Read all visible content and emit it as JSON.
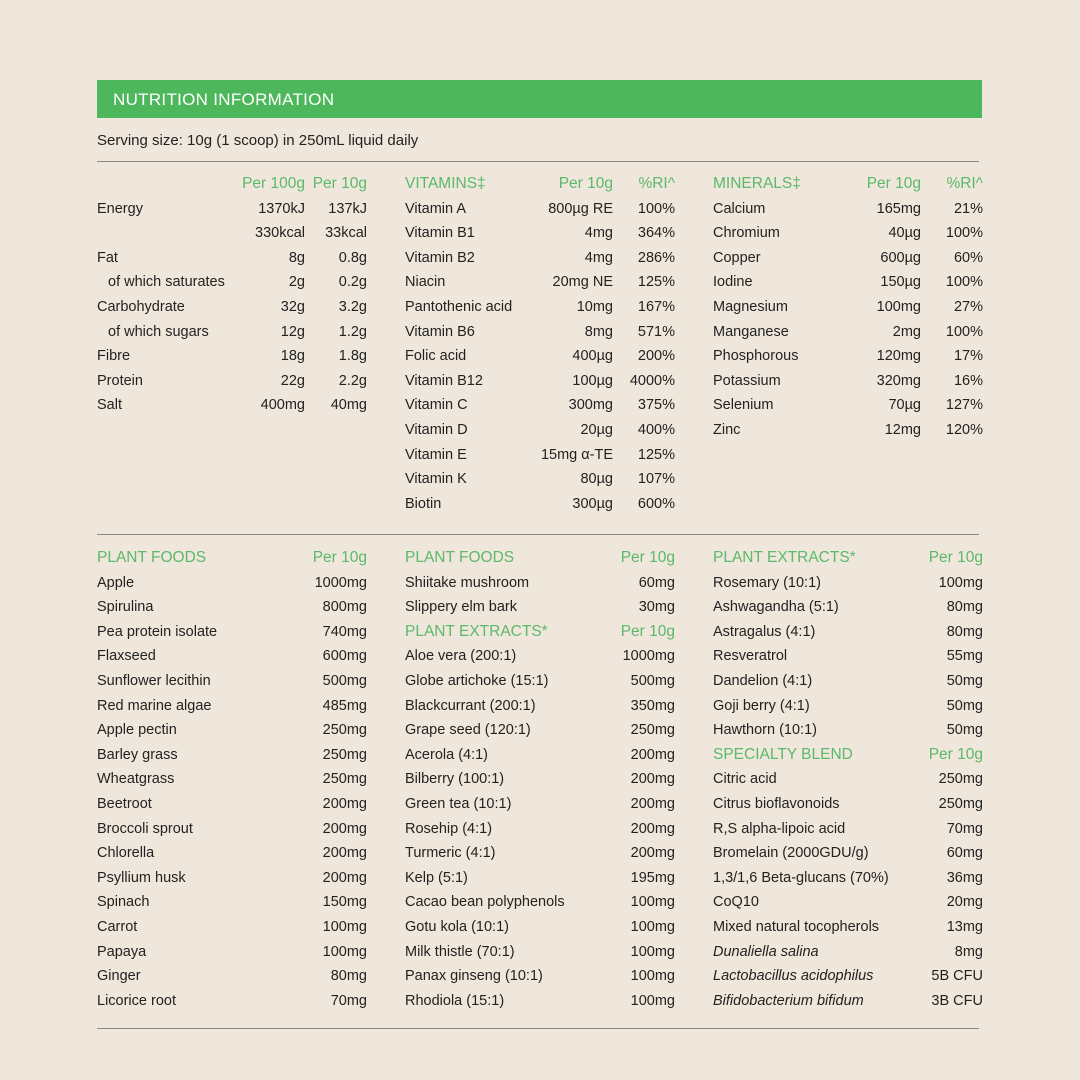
{
  "header": {
    "title": "NUTRITION INFORMATION",
    "serving": "Serving size: 10g (1 scoop) in 250mL liquid daily"
  },
  "colors": {
    "accent": "#4db85b",
    "heading_text": "#5cb86a",
    "background": "#efe7db"
  },
  "top": {
    "nutrients": {
      "headers": [
        "",
        "Per 100g",
        "Per 10g"
      ],
      "rows": [
        {
          "name": "Energy",
          "per100": "1370kJ",
          "per10": "137kJ"
        },
        {
          "name": "",
          "per100": "330kcal",
          "per10": "33kcal"
        },
        {
          "name": "Fat",
          "per100": "8g",
          "per10": "0.8g"
        },
        {
          "name": "of which saturates",
          "per100": "2g",
          "per10": "0.2g",
          "indent": true
        },
        {
          "name": "Carbohydrate",
          "per100": "32g",
          "per10": "3.2g"
        },
        {
          "name": "of which sugars",
          "per100": "12g",
          "per10": "1.2g",
          "indent": true
        },
        {
          "name": "Fibre",
          "per100": "18g",
          "per10": "1.8g"
        },
        {
          "name": "Protein",
          "per100": "22g",
          "per10": "2.2g"
        },
        {
          "name": "Salt",
          "per100": "400mg",
          "per10": "40mg"
        }
      ]
    },
    "vitamins": {
      "headers": [
        "VITAMINS‡",
        "Per 10g",
        "%RI^"
      ],
      "rows": [
        {
          "name": "Vitamin A",
          "per10": "800µg RE",
          "ri": "100%"
        },
        {
          "name": "Vitamin B1",
          "per10": "4mg",
          "ri": "364%"
        },
        {
          "name": "Vitamin B2",
          "per10": "4mg",
          "ri": "286%"
        },
        {
          "name": "Niacin",
          "per10": "20mg NE",
          "ri": "125%"
        },
        {
          "name": "Pantothenic acid",
          "per10": "10mg",
          "ri": "167%"
        },
        {
          "name": "Vitamin B6",
          "per10": "8mg",
          "ri": "571%"
        },
        {
          "name": "Folic acid",
          "per10": "400µg",
          "ri": "200%"
        },
        {
          "name": "Vitamin B12",
          "per10": "100µg",
          "ri": "4000%"
        },
        {
          "name": "Vitamin C",
          "per10": "300mg",
          "ri": "375%"
        },
        {
          "name": "Vitamin D",
          "per10": "20µg",
          "ri": "400%"
        },
        {
          "name": "Vitamin E",
          "per10": "15mg α-TE",
          "ri": "125%"
        },
        {
          "name": "Vitamin K",
          "per10": "80µg",
          "ri": "107%"
        },
        {
          "name": "Biotin",
          "per10": "300µg",
          "ri": "600%"
        }
      ]
    },
    "minerals": {
      "headers": [
        "MINERALS‡",
        "Per 10g",
        "%RI^"
      ],
      "rows": [
        {
          "name": "Calcium",
          "per10": "165mg",
          "ri": "21%"
        },
        {
          "name": "Chromium",
          "per10": "40µg",
          "ri": "100%"
        },
        {
          "name": "Copper",
          "per10": "600µg",
          "ri": "60%"
        },
        {
          "name": "Iodine",
          "per10": "150µg",
          "ri": "100%"
        },
        {
          "name": "Magnesium",
          "per10": "100mg",
          "ri": "27%"
        },
        {
          "name": "Manganese",
          "per10": "2mg",
          "ri": "100%"
        },
        {
          "name": "Phosphorous",
          "per10": "120mg",
          "ri": "17%"
        },
        {
          "name": "Potassium",
          "per10": "320mg",
          "ri": "16%"
        },
        {
          "name": "Selenium",
          "per10": "70µg",
          "ri": "127%"
        },
        {
          "name": "Zinc",
          "per10": "12mg",
          "ri": "120%"
        }
      ]
    }
  },
  "bottom": [
    [
      {
        "title": "PLANT FOODS",
        "unit": "Per 10g",
        "rows": [
          [
            "Apple",
            "1000mg"
          ],
          [
            "Spirulina",
            "800mg"
          ],
          [
            "Pea protein isolate",
            "740mg"
          ],
          [
            "Flaxseed",
            "600mg"
          ],
          [
            "Sunflower lecithin",
            "500mg"
          ],
          [
            "Red marine algae",
            "485mg"
          ],
          [
            "Apple pectin",
            "250mg"
          ],
          [
            "Barley grass",
            "250mg"
          ],
          [
            "Wheatgrass",
            "250mg"
          ],
          [
            "Beetroot",
            "200mg"
          ],
          [
            "Broccoli sprout",
            "200mg"
          ],
          [
            "Chlorella",
            "200mg"
          ],
          [
            "Psyllium husk",
            "200mg"
          ],
          [
            "Spinach",
            "150mg"
          ],
          [
            "Carrot",
            "100mg"
          ],
          [
            "Papaya",
            "100mg"
          ],
          [
            "Ginger",
            "80mg"
          ],
          [
            "Licorice root",
            "70mg"
          ]
        ]
      }
    ],
    [
      {
        "title": "PLANT FOODS",
        "unit": "Per 10g",
        "rows": [
          [
            "Shiitake mushroom",
            "60mg"
          ],
          [
            "Slippery elm bark",
            "30mg"
          ]
        ]
      },
      {
        "title": "PLANT EXTRACTS*",
        "unit": "Per 10g",
        "rows": [
          [
            "Aloe vera (200:1)",
            "1000mg"
          ],
          [
            "Globe artichoke (15:1)",
            "500mg"
          ],
          [
            "Blackcurrant (200:1)",
            "350mg"
          ],
          [
            "Grape seed (120:1)",
            "250mg"
          ],
          [
            "Acerola (4:1)",
            "200mg"
          ],
          [
            "Bilberry (100:1)",
            "200mg"
          ],
          [
            "Green tea (10:1)",
            "200mg"
          ],
          [
            "Rosehip (4:1)",
            "200mg"
          ],
          [
            "Turmeric (4:1)",
            "200mg"
          ],
          [
            "Kelp (5:1)",
            "195mg"
          ],
          [
            "Cacao bean polyphenols",
            "100mg"
          ],
          [
            "Gotu kola (10:1)",
            "100mg"
          ],
          [
            "Milk thistle (70:1)",
            "100mg"
          ],
          [
            "Panax ginseng (10:1)",
            "100mg"
          ],
          [
            "Rhodiola (15:1)",
            "100mg"
          ]
        ]
      }
    ],
    [
      {
        "title": "PLANT EXTRACTS*",
        "unit": "Per 10g",
        "rows": [
          [
            "Rosemary (10:1)",
            "100mg"
          ],
          [
            "Ashwagandha (5:1)",
            "80mg"
          ],
          [
            "Astragalus (4:1)",
            "80mg"
          ],
          [
            "Resveratrol",
            "55mg"
          ],
          [
            "Dandelion (4:1)",
            "50mg"
          ],
          [
            "Goji berry (4:1)",
            "50mg"
          ],
          [
            "Hawthorn (10:1)",
            "50mg"
          ]
        ]
      },
      {
        "title": "SPECIALTY BLEND",
        "unit": "Per 10g",
        "rows": [
          [
            "Citric acid",
            "250mg"
          ],
          [
            "Citrus bioflavonoids",
            "250mg"
          ],
          [
            "R,S alpha-lipoic acid",
            "70mg"
          ],
          [
            "Bromelain (2000GDU/g)",
            "60mg"
          ],
          [
            "1,3/1,6 Beta-glucans (70%)",
            "36mg"
          ],
          [
            "CoQ10",
            "20mg"
          ],
          [
            "Mixed natural tocopherols",
            "13mg"
          ],
          [
            "Dunaliella salina",
            "8mg",
            "italic"
          ],
          [
            "Lactobacillus acidophilus",
            "5B CFU",
            "italic"
          ],
          [
            "Bifidobacterium bifidum",
            "3B CFU",
            "italic"
          ]
        ]
      }
    ]
  ]
}
